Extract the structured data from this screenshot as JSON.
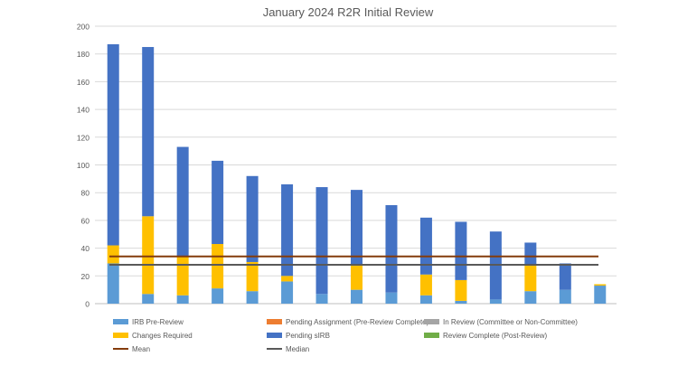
{
  "chart_data": {
    "type": "bar",
    "stacked": true,
    "title": "January 2024 R2R Initial Review",
    "xlabel": "",
    "ylabel": "",
    "ylim": [
      0,
      200
    ],
    "yticks": [
      0,
      20,
      40,
      60,
      80,
      100,
      120,
      140,
      160,
      180,
      200
    ],
    "grid": true,
    "legend_position": "bottom",
    "colors": {
      "grid": "#d9d9d9",
      "axis": "#bfbfbf",
      "tick_text": "#595959",
      "title_text": "#595959"
    },
    "series": [
      {
        "name": "IRB Pre-Review",
        "color": "#5b9bd5",
        "values": [
          29,
          7,
          6,
          11,
          9,
          16,
          7,
          10,
          8,
          6,
          2,
          3,
          9,
          10,
          13
        ]
      },
      {
        "name": "Pending Assignment (Pre-Review Complete)",
        "color": "#ed7d31",
        "values": [
          0,
          0,
          0,
          0,
          0,
          0,
          0,
          0,
          0,
          0,
          0,
          0,
          0,
          0,
          0
        ]
      },
      {
        "name": "In Review (Committee or Non-Committee)",
        "color": "#a5a5a5",
        "values": [
          0,
          0,
          0,
          0,
          0,
          0,
          0,
          0,
          0,
          0,
          0,
          0,
          0,
          0,
          0
        ]
      },
      {
        "name": "Changes Required",
        "color": "#ffc000",
        "values": [
          13,
          56,
          28,
          32,
          21,
          4,
          0,
          18,
          0,
          15,
          15,
          0,
          19,
          0,
          1
        ]
      },
      {
        "name": "Pending sIRB",
        "color": "#4472c4",
        "values": [
          145,
          122,
          79,
          60,
          62,
          66,
          77,
          54,
          63,
          41,
          42,
          49,
          16,
          19,
          0
        ]
      },
      {
        "name": "Review Complete (Post-Review)",
        "color": "#70ad47",
        "values": [
          0,
          0,
          0,
          0,
          0,
          0,
          0,
          0,
          0,
          0,
          0,
          0,
          0,
          0,
          0
        ]
      }
    ],
    "reference_lines": [
      {
        "name": "Mean",
        "color": "#843c0c",
        "value": 34
      },
      {
        "name": "Median",
        "color": "#595959",
        "value": 28
      }
    ],
    "legend": [
      {
        "name": "IRB Pre-Review",
        "color": "#5b9bd5",
        "kind": "box"
      },
      {
        "name": "Pending Assignment (Pre-Review Complete)",
        "color": "#ed7d31",
        "kind": "box"
      },
      {
        "name": "In Review (Committee or Non-Committee)",
        "color": "#a5a5a5",
        "kind": "box"
      },
      {
        "name": "Changes Required",
        "color": "#ffc000",
        "kind": "box"
      },
      {
        "name": "Pending sIRB",
        "color": "#4472c4",
        "kind": "box"
      },
      {
        "name": "Review Complete (Post-Review)",
        "color": "#70ad47",
        "kind": "box"
      },
      {
        "name": "Mean",
        "color": "#843c0c",
        "kind": "line"
      },
      {
        "name": "Median",
        "color": "#595959",
        "kind": "line"
      }
    ]
  }
}
